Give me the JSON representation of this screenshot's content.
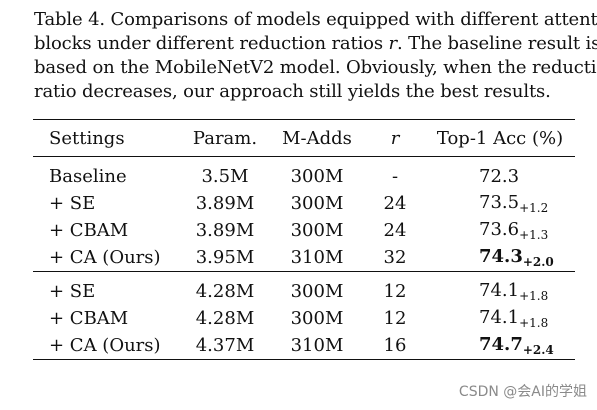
{
  "caption": {
    "line1": "Table 4. Comparisons of models equipped with different attention",
    "line2_pre": "blocks under different reduction ratios ",
    "line2_var": "r",
    "line2_post": ".  The baseline result is",
    "line3": "based on the MobileNetV2 model. Obviously, when the reduction",
    "line4": "ratio decreases, our approach still yields the best results."
  },
  "table": {
    "headers": {
      "settings": "Settings",
      "param": "Param.",
      "madds": "M-Adds",
      "r": "r",
      "acc": "Top-1 Acc (%)"
    },
    "group1": [
      {
        "settings": "Baseline",
        "param": "3.5M",
        "madds": "300M",
        "r": "-",
        "acc": "72.3",
        "delta": ""
      },
      {
        "settings": "+ SE",
        "param": "3.89M",
        "madds": "300M",
        "r": "24",
        "acc": "73.5",
        "delta": "+1.2"
      },
      {
        "settings": "+ CBAM",
        "param": "3.89M",
        "madds": "300M",
        "r": "24",
        "acc": "73.6",
        "delta": "+1.3"
      },
      {
        "settings": "+ CA (Ours)",
        "param": "3.95M",
        "madds": "310M",
        "r": "32",
        "acc": "74.3",
        "delta": "+2.0"
      }
    ],
    "group2": [
      {
        "settings": "+ SE",
        "param": "4.28M",
        "madds": "300M",
        "r": "12",
        "acc": "74.1",
        "delta": "+1.8"
      },
      {
        "settings": "+ CBAM",
        "param": "4.28M",
        "madds": "300M",
        "r": "12",
        "acc": "74.1",
        "delta": "+1.8"
      },
      {
        "settings": "+ CA (Ours)",
        "param": "4.37M",
        "madds": "310M",
        "r": "16",
        "acc": "74.7",
        "delta": "+2.4"
      }
    ]
  },
  "watermark": "CSDN @会AI的学姐"
}
